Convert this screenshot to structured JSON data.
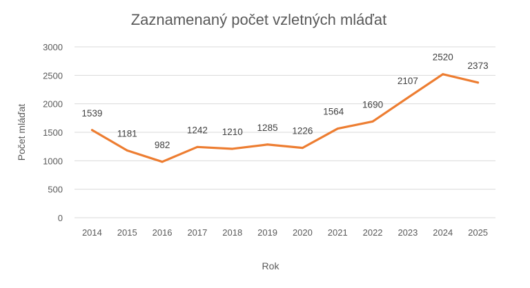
{
  "chart_data": {
    "type": "line",
    "title": "Zaznamenaný počet vzletných mláďat",
    "xlabel": "Rok",
    "ylabel": "Počet mláďat",
    "categories": [
      "2014",
      "2015",
      "2016",
      "2017",
      "2018",
      "2019",
      "2020",
      "2021",
      "2022",
      "2023",
      "2024",
      "2025"
    ],
    "series": [
      {
        "values": [
          1539,
          1181,
          982,
          1242,
          1210,
          1285,
          1226,
          1564,
          1690,
          2107,
          2520,
          2373
        ],
        "color": "#ED7D31"
      }
    ],
    "data_labels": [
      "1539",
      "1181",
      "982",
      "1242",
      "1210",
      "1285",
      "1226",
      "1564",
      "1690",
      "2107",
      "2520",
      "2373"
    ],
    "ylim": [
      0,
      3000
    ],
    "yticks": [
      "0",
      "500",
      "1000",
      "1500",
      "2000",
      "2500",
      "3000"
    ],
    "grid": true,
    "legend": "none"
  }
}
